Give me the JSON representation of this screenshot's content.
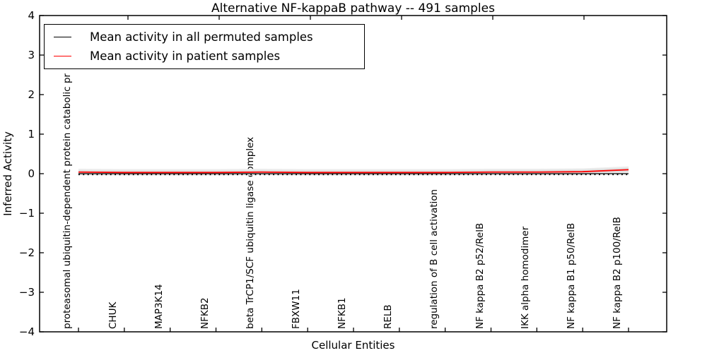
{
  "title": "Alternative NF-kappaB pathway -- 491 samples",
  "axes": {
    "ylabel": "Inferred Activity",
    "xlabel": "Cellular Entities",
    "ytick_labels": [
      "4",
      "3",
      "2",
      "1",
      "0",
      "−1",
      "−2",
      "−3",
      "−4"
    ]
  },
  "legend": {
    "items": [
      {
        "label": "Mean activity in all permuted samples",
        "color": "#000000"
      },
      {
        "label": "Mean activity in patient samples",
        "color": "#ff0000"
      }
    ]
  },
  "chart_data": {
    "type": "line",
    "title": "Alternative NF-kappaB pathway -- 491 samples",
    "xlabel": "Cellular Entities",
    "ylabel": "Inferred Activity",
    "ylim": [
      -4,
      4
    ],
    "ytick_values": [
      4,
      3,
      2,
      1,
      0,
      -1,
      -2,
      -3,
      -4
    ],
    "grid": false,
    "legend_position": "upper left",
    "categories": [
      "proteasomal ubiquitin-dependent protein catabolic pr",
      "CHUK",
      "MAP3K14",
      "NFKB2",
      "beta TrCP1/SCF ubiquitin ligase complex",
      "FBXW11",
      "NFKB1",
      "RELB",
      "regulation of B cell activation",
      "NF kappa B2 p52/RelB",
      "IKK alpha homodimer",
      "NF kappa B1 p50/RelB",
      "NF kappa B2 p100/RelB"
    ],
    "series": [
      {
        "name": "Mean activity in all permuted samples",
        "color": "#000000",
        "style": "solid",
        "values": [
          0.0,
          0.0,
          0.0,
          0.0,
          0.0,
          0.0,
          0.0,
          0.0,
          0.0,
          0.0,
          0.0,
          0.0,
          0.0
        ]
      },
      {
        "name": "Mean activity in patient samples",
        "color": "#ff0000",
        "style": "solid",
        "values": [
          0.04,
          0.03,
          0.03,
          0.03,
          0.04,
          0.03,
          0.03,
          0.03,
          0.03,
          0.04,
          0.04,
          0.05,
          0.1
        ]
      }
    ],
    "zero_reference_line": {
      "style": "dotted",
      "color": "#000000",
      "y": 0
    },
    "uncertainty_band": {
      "color_inner": "#dedede",
      "color_outer": "#ececec",
      "half_width_inner": 0.05,
      "half_width_outer": 0.085
    }
  }
}
